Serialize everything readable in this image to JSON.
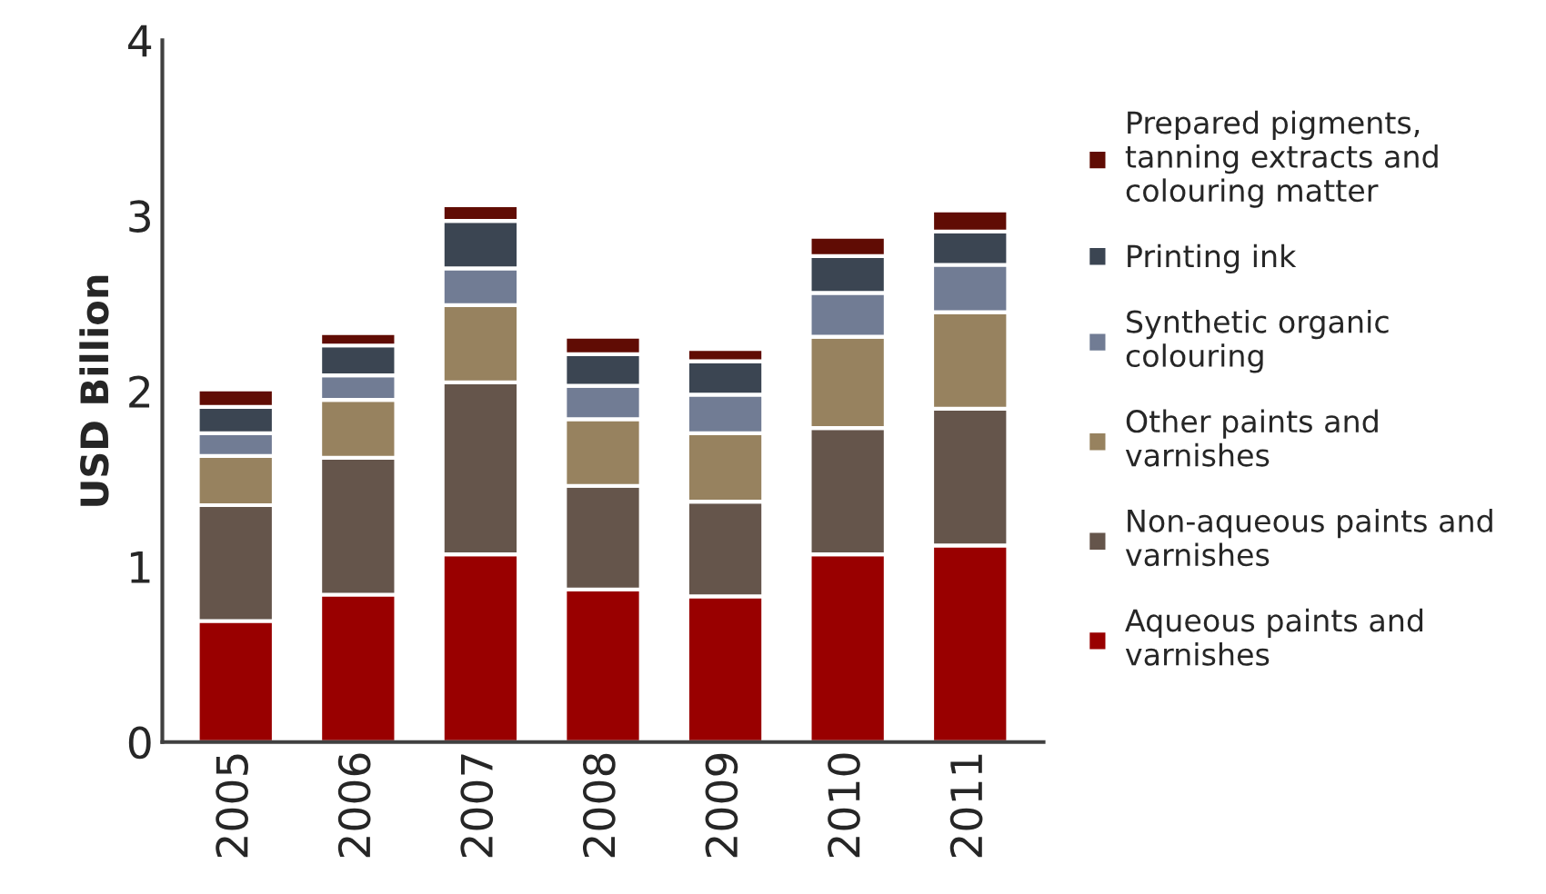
{
  "chart_data": {
    "type": "bar",
    "stacked": true,
    "ylabel": "USD Billion",
    "categories": [
      "2005",
      "2006",
      "2007",
      "2008",
      "2009",
      "2010",
      "2011"
    ],
    "series": [
      {
        "name": "Aqueous paints and varnishes",
        "color": "#990000",
        "values": [
          0.69,
          0.84,
          1.07,
          0.87,
          0.83,
          1.07,
          1.12
        ]
      },
      {
        "name": "Non-aqueous paints and varnishes",
        "color": "#65554b",
        "values": [
          0.66,
          0.78,
          0.98,
          0.59,
          0.54,
          0.72,
          0.78
        ]
      },
      {
        "name": "Other paints and varnishes",
        "color": "#97825f",
        "values": [
          0.28,
          0.33,
          0.44,
          0.38,
          0.39,
          0.52,
          0.55
        ]
      },
      {
        "name": "Synthetic organic colouring",
        "color": "#717c94",
        "values": [
          0.13,
          0.14,
          0.21,
          0.19,
          0.22,
          0.25,
          0.27
        ]
      },
      {
        "name": "Printing ink",
        "color": "#3b4552",
        "values": [
          0.15,
          0.17,
          0.27,
          0.18,
          0.19,
          0.21,
          0.19
        ]
      },
      {
        "name": "Prepared pigments, tanning extracts and colouring matter",
        "color": "#600c04",
        "values": [
          0.1,
          0.07,
          0.09,
          0.1,
          0.07,
          0.11,
          0.12
        ]
      }
    ],
    "ylim": [
      0,
      4
    ],
    "yticks": [
      0,
      1,
      2,
      3,
      4
    ],
    "grid": false,
    "legend": "right"
  }
}
